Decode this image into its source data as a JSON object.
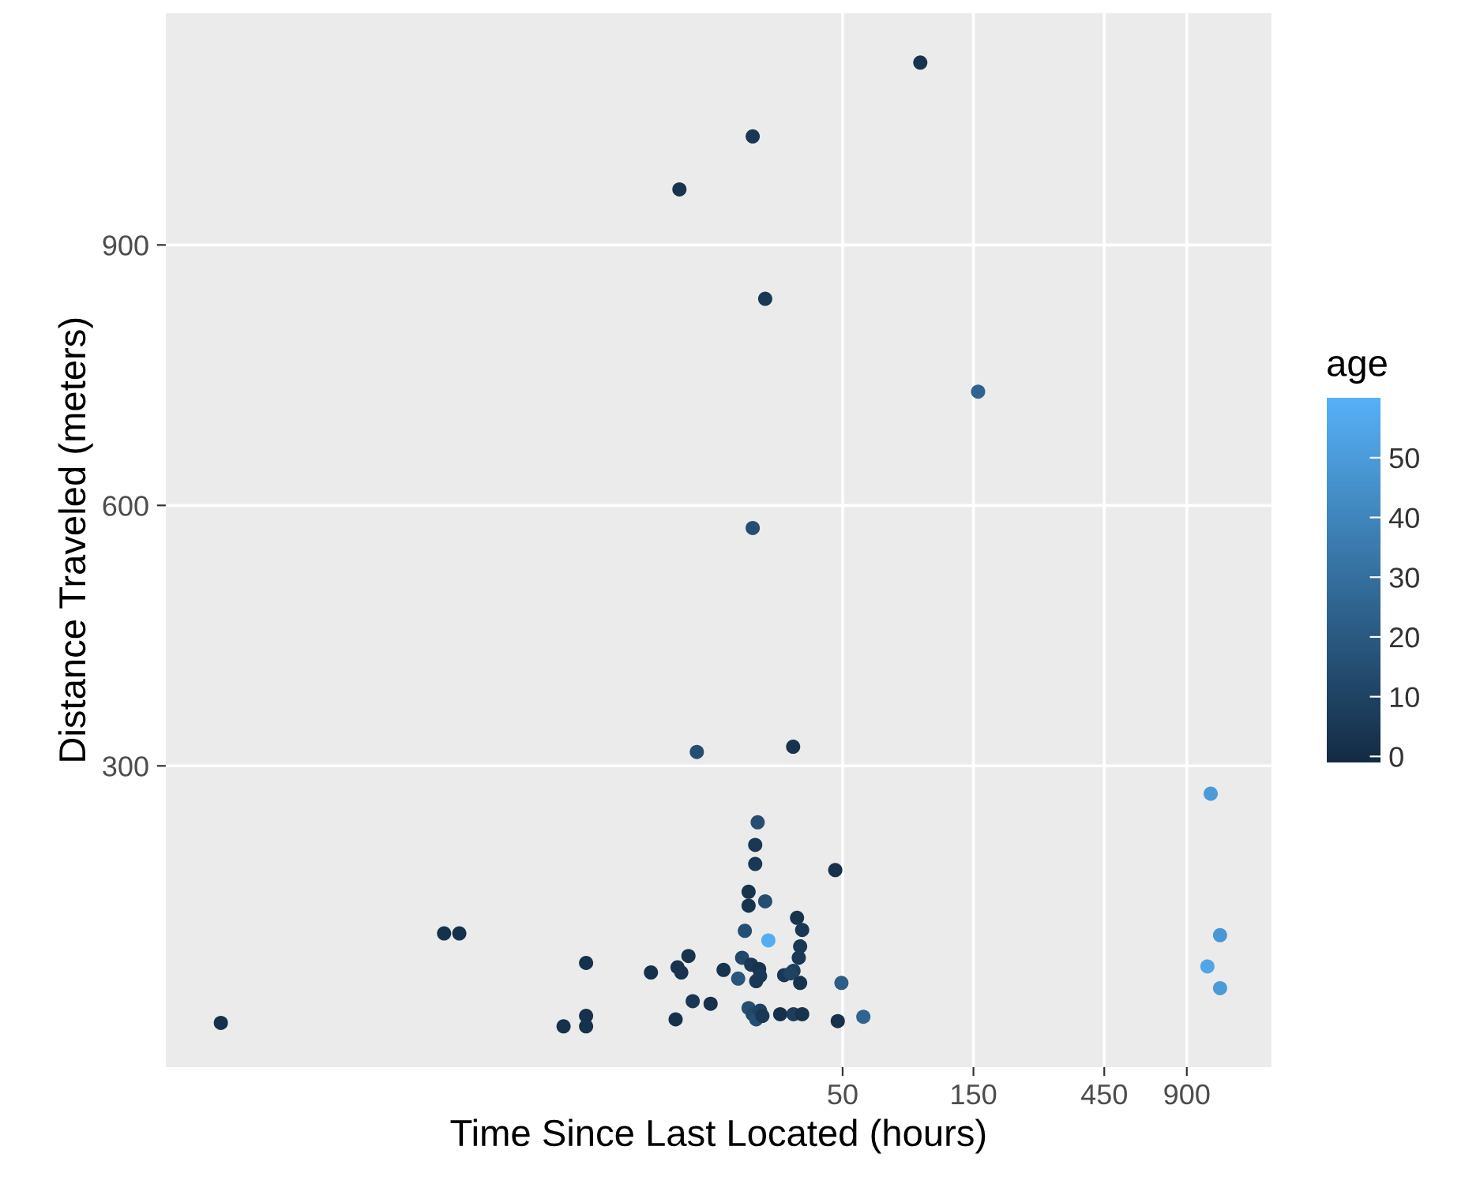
{
  "chart_data": {
    "type": "scatter",
    "xlabel": "Time Since Last Located (hours)",
    "ylabel": "Distance Traveled (meters)",
    "clabel": "age",
    "log": "x",
    "grid": true,
    "marker": "circle",
    "xlim": [
      0.17,
      1830
    ],
    "xticks": [
      50,
      150,
      450,
      900
    ],
    "ylim": [
      -47,
      1167
    ],
    "yticks": [
      300,
      600,
      900
    ],
    "clim": [
      -1,
      60
    ],
    "cticks": [
      0,
      10,
      20,
      30,
      40,
      50
    ],
    "series": [
      {
        "x": [
          0.27,
          1.76,
          2.0,
          4.8,
          5.8,
          5.8,
          5.8,
          10.0,
          12.5,
          13.7,
          12.9,
          12.3,
          14.2,
          16.5,
          18.4,
          14.7,
          33,
          24.5,
          24.0,
          24.0,
          47,
          22.7,
          22.7,
          26.1,
          22.0,
          26.8,
          34.1,
          35.6,
          35.0,
          34.6,
          33.1,
          21.5,
          23.2,
          24.8,
          20.8,
          24.2,
          25.0,
          30.6,
          32.3,
          35.0,
          22.7,
          23.5,
          24.2,
          25.0,
          25.5,
          29.6,
          33.1,
          35.6,
          48,
          49.5,
          59.5,
          96,
          23.5,
          12.7,
          26.1,
          156,
          23.5,
          1100,
          1190,
          1070,
          1190
        ],
        "values": [
          4,
          107,
          107,
          0,
          73,
          12,
          0,
          62,
          68,
          81,
          62,
          8,
          29,
          26,
          65,
          316,
          322,
          235,
          209,
          187,
          180,
          155,
          139,
          144,
          110,
          99,
          125,
          111,
          92,
          79,
          64,
          79,
          71,
          66,
          55,
          52,
          58,
          59,
          61,
          50,
          21,
          14,
          8,
          18,
          12,
          14,
          14,
          14,
          6,
          50,
          11,
          1110,
          1025,
          964,
          838,
          731,
          574,
          268,
          105,
          69,
          44
        ],
        "cvalues": [
          2,
          2,
          2,
          2,
          2,
          2,
          2,
          2,
          3,
          3,
          3,
          2,
          5,
          2,
          3,
          15,
          3,
          15,
          5,
          5,
          2,
          3,
          3,
          15,
          15,
          58,
          3,
          5,
          5,
          5,
          8,
          12,
          5,
          3,
          18,
          5,
          5,
          5,
          10,
          3,
          15,
          12,
          15,
          10,
          5,
          2,
          8,
          3,
          2,
          22,
          25,
          3,
          5,
          3,
          5,
          25,
          15,
          50,
          48,
          55,
          50
        ]
      }
    ]
  }
}
